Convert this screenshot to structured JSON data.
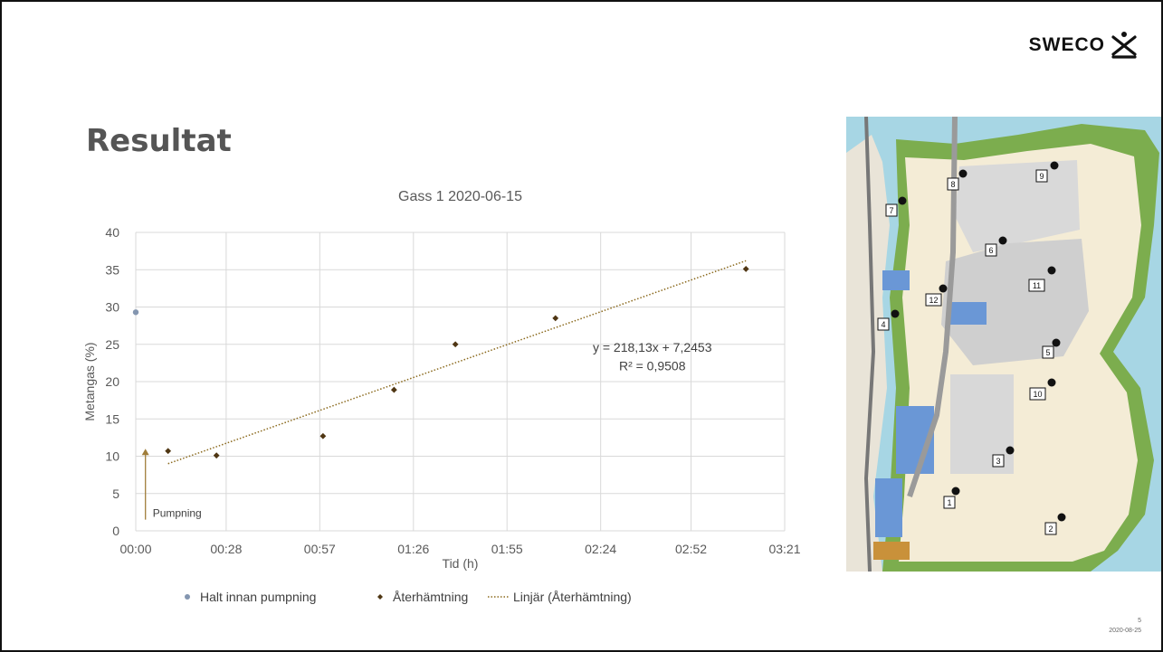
{
  "slide": {
    "heading": "Resultat",
    "logo_text": "SWECO",
    "page_number": "5",
    "date": "2020-08-25"
  },
  "map": {
    "point_labels": [
      "1",
      "2",
      "3",
      "4",
      "5",
      "6",
      "7",
      "8",
      "9",
      "10",
      "11",
      "12"
    ]
  },
  "chart_data": {
    "type": "scatter",
    "title": "Gass 1  2020-06-15",
    "xlabel": "Tid (h)",
    "ylabel": "Metangas (%)",
    "xlim": [
      "00:00",
      "03:21"
    ],
    "ylim": [
      0,
      40
    ],
    "xticks": [
      "00:00",
      "00:28",
      "00:57",
      "01:26",
      "01:55",
      "02:24",
      "02:52",
      "03:21"
    ],
    "yticks": [
      0,
      5,
      10,
      15,
      20,
      25,
      30,
      35,
      40
    ],
    "grid": true,
    "legend_position": "bottom",
    "series": [
      {
        "name": "Halt innan pumpning",
        "color": "#8496b0",
        "marker": "circle",
        "points": [
          {
            "x": "00:00",
            "y": 29.3
          }
        ]
      },
      {
        "name": "Återhämtning",
        "color": "#4f3613",
        "marker": "diamond",
        "points": [
          {
            "x": "00:10",
            "y": 10.7
          },
          {
            "x": "00:25",
            "y": 10.1
          },
          {
            "x": "00:58",
            "y": 12.7
          },
          {
            "x": "01:20",
            "y": 18.9
          },
          {
            "x": "01:39",
            "y": 25.0
          },
          {
            "x": "02:10",
            "y": 28.5
          },
          {
            "x": "03:09",
            "y": 35.1
          }
        ]
      },
      {
        "name": "Linjär (Återhämtning)",
        "color": "#8b6a1e",
        "style": "dotted",
        "points": [
          {
            "x": "00:10",
            "y": 9.0
          },
          {
            "x": "03:09",
            "y": 36.2
          }
        ]
      }
    ],
    "annotations": [
      {
        "text": "y = 218,13x + 7,2453",
        "x": "02:40",
        "y": 24.0
      },
      {
        "text": "R² = 0,9508",
        "x": "02:40",
        "y": 21.5
      },
      {
        "text": "Pumpning",
        "x": "00:03",
        "y": 2.5
      }
    ],
    "arrow": {
      "x": "00:03",
      "y_from": 1.5,
      "y_to": 11.0,
      "color": "#a07d3a"
    }
  }
}
